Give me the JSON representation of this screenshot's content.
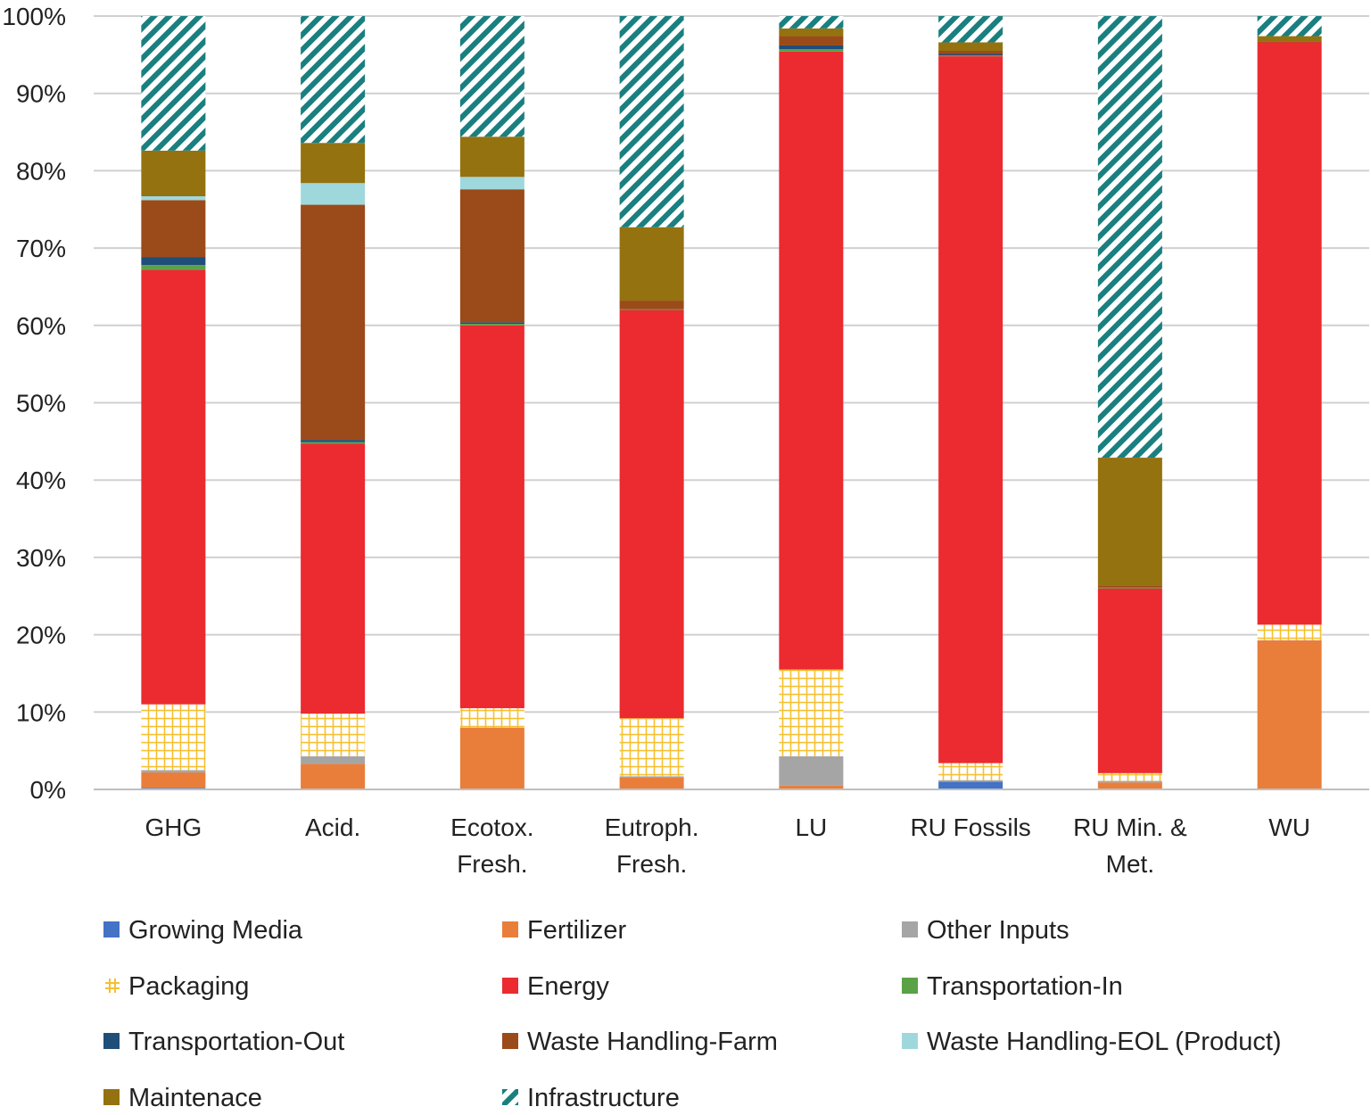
{
  "chart_data": {
    "type": "bar",
    "stacked": true,
    "title": "",
    "xlabel": "",
    "ylabel": "",
    "ylim": [
      0,
      100
    ],
    "yticks": [
      0,
      10,
      20,
      30,
      40,
      50,
      60,
      70,
      80,
      90,
      100
    ],
    "ytick_labels": [
      "0%",
      "10%",
      "20%",
      "30%",
      "40%",
      "50%",
      "60%",
      "70%",
      "80%",
      "90%",
      "100%"
    ],
    "grid": true,
    "legend_position": "bottom",
    "categories": [
      [
        "GHG"
      ],
      [
        "Acid."
      ],
      [
        "Ecotox.",
        "Fresh."
      ],
      [
        "Eutroph.",
        "Fresh."
      ],
      [
        "LU"
      ],
      [
        "RU Fossils"
      ],
      [
        "RU Min. &",
        "Met."
      ],
      [
        "WU"
      ]
    ],
    "series": [
      {
        "name": "Growing Media",
        "color": "#4472C4",
        "pattern": "solid",
        "values": [
          0.2,
          0.0,
          0.0,
          0.0,
          0.0,
          1.0,
          0.0,
          0.0
        ]
      },
      {
        "name": "Fertilizer",
        "color": "#E97E3B",
        "pattern": "solid",
        "values": [
          2.0,
          3.3,
          8.0,
          1.5,
          0.5,
          0.0,
          0.9,
          19.3
        ]
      },
      {
        "name": "Other Inputs",
        "color": "#A5A5A5",
        "pattern": "solid",
        "values": [
          0.3,
          1.0,
          0.0,
          0.2,
          3.8,
          0.2,
          0.2,
          0.0
        ]
      },
      {
        "name": "Packaging",
        "color": "#F5C030",
        "pattern": "grid",
        "values": [
          8.5,
          5.5,
          2.5,
          7.5,
          11.2,
          2.2,
          1.0,
          2.0
        ]
      },
      {
        "name": "Energy",
        "color": "#EB2B30",
        "pattern": "solid",
        "values": [
          56.2,
          34.9,
          49.5,
          52.8,
          79.9,
          91.4,
          23.9,
          75.3
        ]
      },
      {
        "name": "Transportation-In",
        "color": "#5BA246",
        "pattern": "solid",
        "values": [
          0.6,
          0.2,
          0.2,
          0.1,
          0.3,
          0.1,
          0.1,
          0.0
        ]
      },
      {
        "name": "Transportation-Out",
        "color": "#1F4E79",
        "pattern": "solid",
        "values": [
          1.0,
          0.3,
          0.2,
          0.0,
          0.5,
          0.2,
          0.0,
          0.0
        ]
      },
      {
        "name": "Waste Handling-Farm",
        "color": "#9B4A1A",
        "pattern": "solid",
        "values": [
          7.4,
          30.4,
          17.2,
          1.1,
          1.2,
          0.4,
          0.2,
          0.1
        ]
      },
      {
        "name": "Waste Handling-EOL (Product)",
        "color": "#9FD8DC",
        "pattern": "solid",
        "values": [
          0.5,
          2.8,
          1.6,
          0.0,
          0.0,
          0.0,
          0.0,
          0.0
        ]
      },
      {
        "name": "Maintenace",
        "color": "#94720F",
        "pattern": "solid",
        "values": [
          5.9,
          5.2,
          5.2,
          9.5,
          1.0,
          1.1,
          16.6,
          0.7
        ]
      },
      {
        "name": "Infrastructure",
        "color": "#1A7F7F",
        "pattern": "hatch",
        "values": [
          17.4,
          16.4,
          15.6,
          27.3,
          1.6,
          3.4,
          57.1,
          2.6
        ]
      }
    ]
  }
}
